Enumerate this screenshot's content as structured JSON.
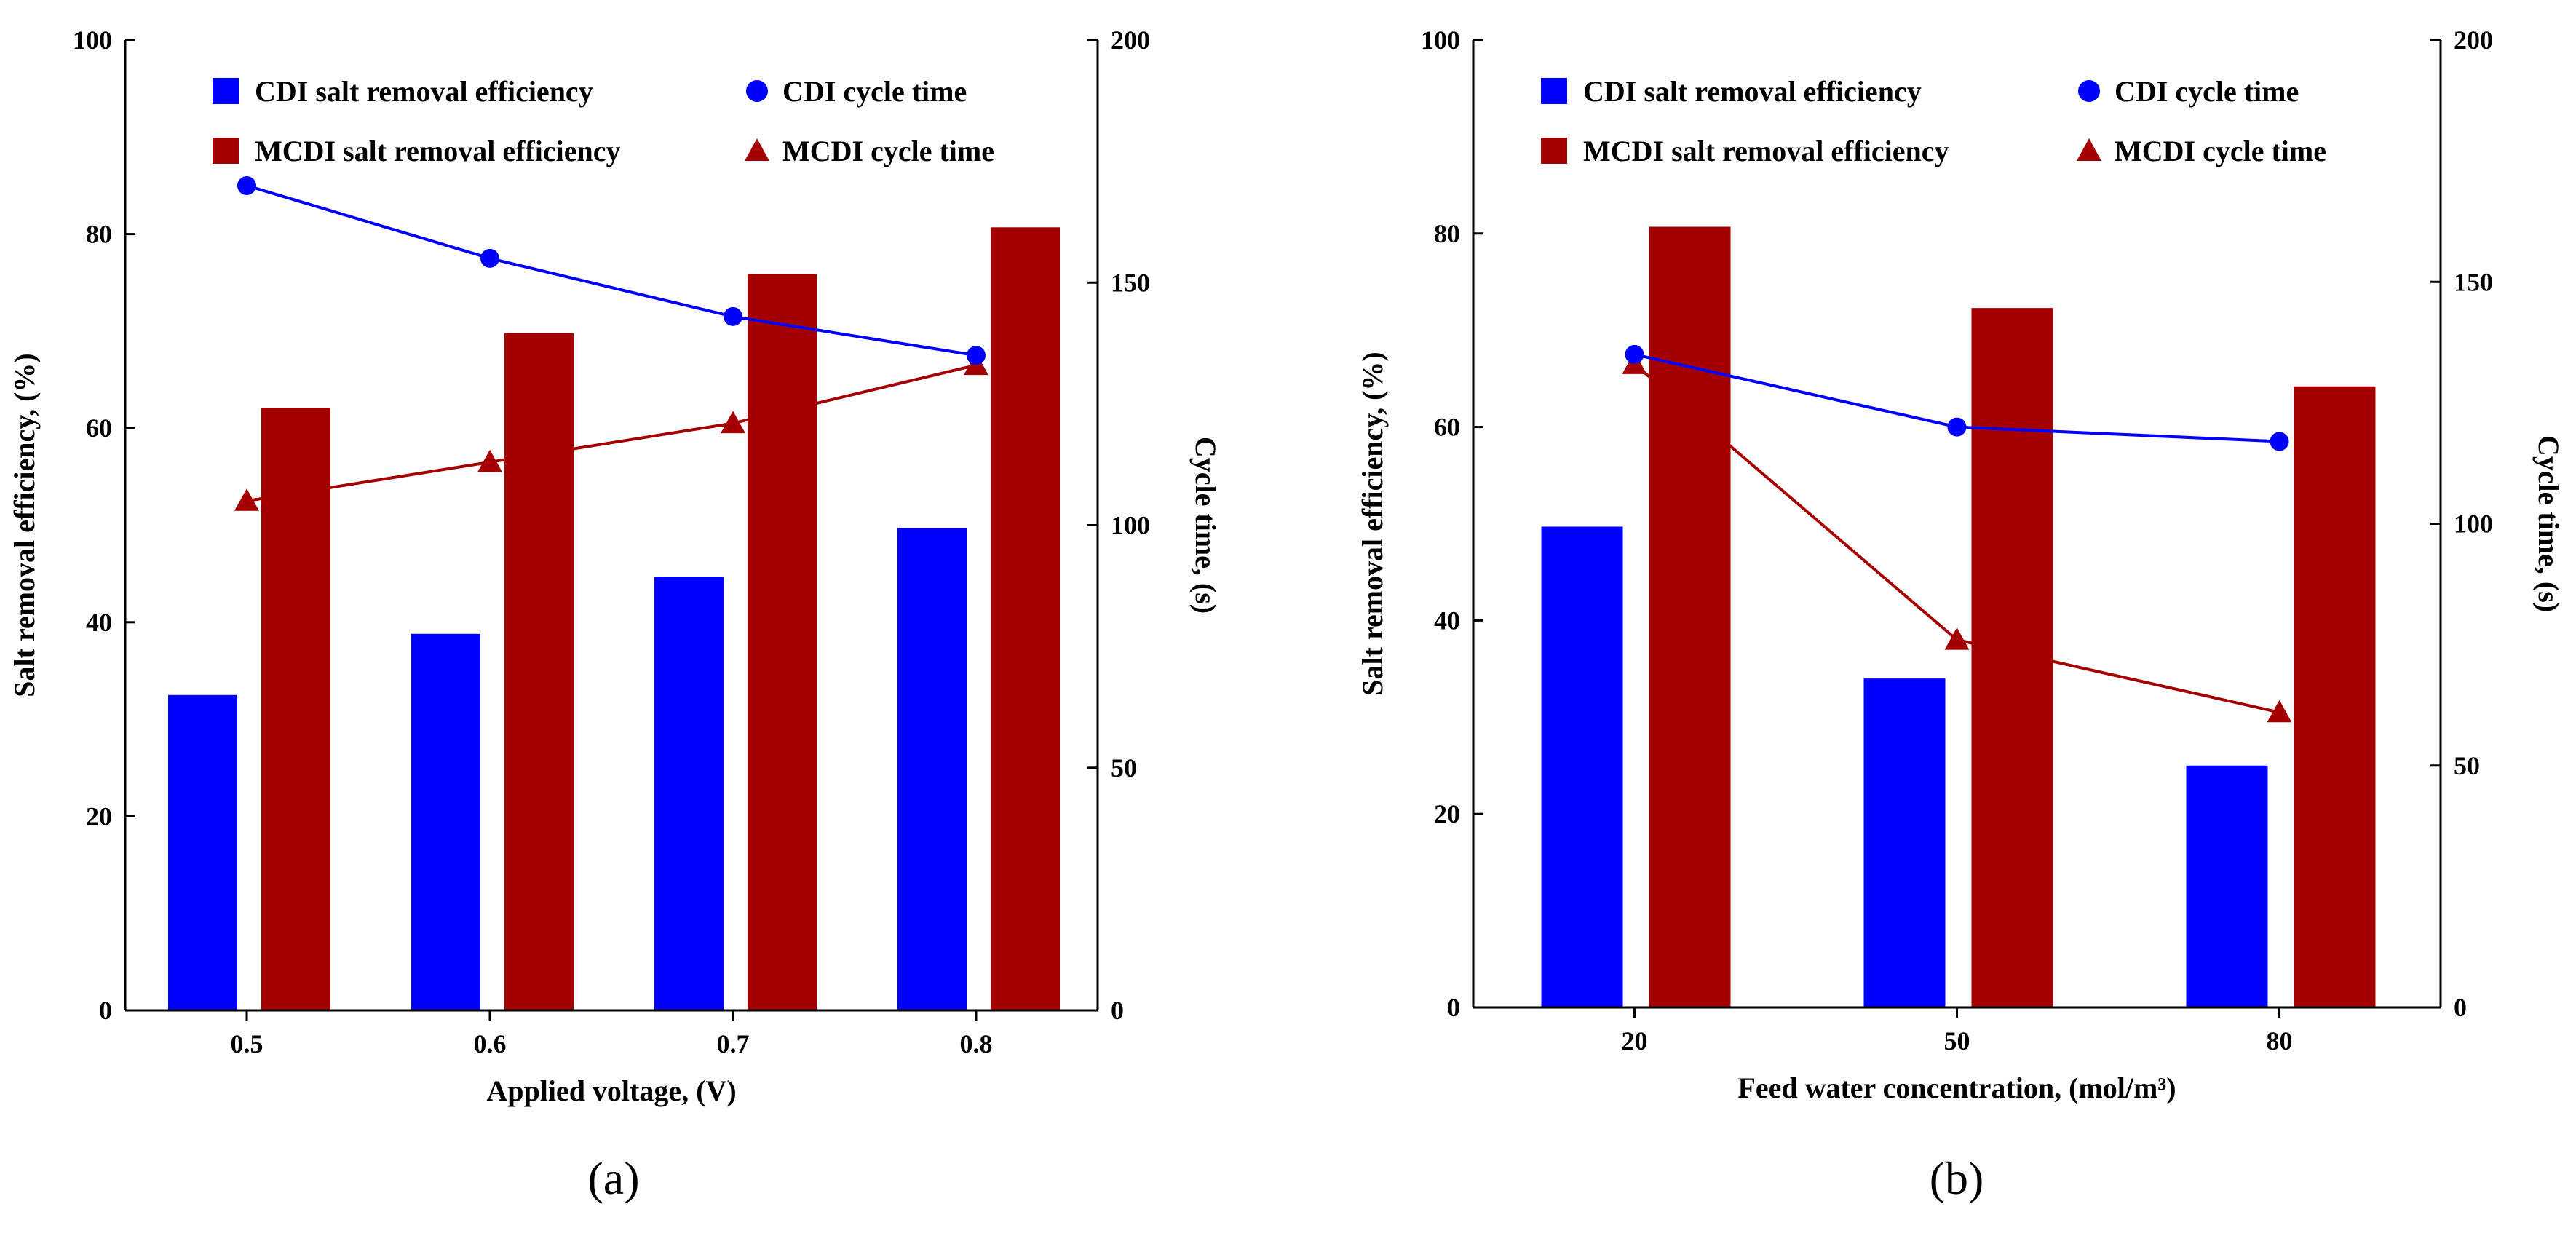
{
  "figure": {
    "panels": [
      "(a)",
      "(b)"
    ]
  },
  "colors": {
    "cdi": "#0000ff",
    "mcdi": "#a50000"
  },
  "legend": {
    "cdi_eff": "CDI salt removal efficiency",
    "cdi_cycle": "CDI cycle time",
    "mcdi_eff": "MCDI salt removal efficiency",
    "mcdi_cycle": "MCDI cycle time"
  },
  "chart_data": [
    {
      "type": "bar",
      "panel_label": "(a)",
      "categories": [
        "0.5",
        "0.6",
        "0.7",
        "0.8"
      ],
      "xlabel": "Applied voltage, (V)",
      "ylabel": "Salt removal efficiency, (%)",
      "y2label": "Cycle time, (s)",
      "ylim": [
        0,
        100
      ],
      "yticks": [
        0,
        20,
        40,
        60,
        80,
        100
      ],
      "y2lim": [
        0,
        200
      ],
      "y2ticks": [
        0,
        50,
        100,
        150,
        200
      ],
      "series": [
        {
          "name": "CDI salt removal efficiency",
          "kind": "bar",
          "axis": "left",
          "values": [
            32.5,
            38.8,
            44.7,
            49.7
          ]
        },
        {
          "name": "MCDI salt removal efficiency",
          "kind": "bar",
          "axis": "left",
          "values": [
            62.1,
            69.8,
            75.9,
            80.7
          ]
        },
        {
          "name": "CDI cycle time",
          "kind": "line-circle",
          "axis": "right",
          "values": [
            170,
            155,
            143,
            135
          ]
        },
        {
          "name": "MCDI cycle time",
          "kind": "line-triangle",
          "axis": "right",
          "values": [
            105,
            113,
            121,
            133
          ]
        }
      ]
    },
    {
      "type": "bar",
      "panel_label": "(b)",
      "categories": [
        "20",
        "50",
        "80"
      ],
      "xlabel": "Feed water concentration, (mol/m³)",
      "ylabel": "Salt removal efficiency, (%)",
      "y2label": "Cycle time, (s)",
      "ylim": [
        0,
        100
      ],
      "yticks": [
        0,
        20,
        40,
        60,
        80,
        100
      ],
      "y2lim": [
        0,
        200
      ],
      "y2ticks": [
        0,
        50,
        100,
        150,
        200
      ],
      "series": [
        {
          "name": "CDI salt removal efficiency",
          "kind": "bar",
          "axis": "left",
          "values": [
            49.7,
            34.0,
            25.0
          ]
        },
        {
          "name": "MCDI salt removal efficiency",
          "kind": "bar",
          "axis": "left",
          "values": [
            80.7,
            72.3,
            64.2
          ]
        },
        {
          "name": "CDI cycle time",
          "kind": "line-circle",
          "axis": "right",
          "values": [
            135,
            120,
            117
          ]
        },
        {
          "name": "MCDI cycle time",
          "kind": "line-triangle",
          "axis": "right",
          "values": [
            133,
            76,
            61
          ]
        }
      ]
    }
  ]
}
